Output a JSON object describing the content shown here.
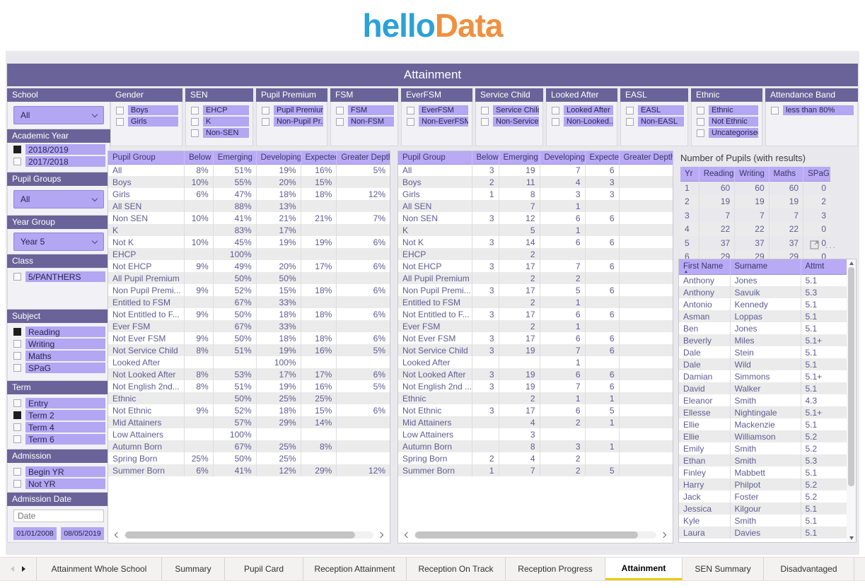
{
  "logo": {
    "part1": "hello",
    "part2": "Data"
  },
  "banner": {
    "title": "Attainment"
  },
  "top_filters": [
    {
      "title": "Gender",
      "options": [
        {
          "label": "Boys",
          "checked": false
        },
        {
          "label": "Girls",
          "checked": false
        }
      ]
    },
    {
      "title": "SEN",
      "options": [
        {
          "label": "EHCP",
          "checked": false
        },
        {
          "label": "K",
          "checked": false
        },
        {
          "label": "Non-SEN",
          "checked": false
        }
      ]
    },
    {
      "title": "Pupil Premium",
      "options": [
        {
          "label": "Pupil Premium",
          "checked": false
        },
        {
          "label": "Non-Pupil Pr...",
          "checked": false
        }
      ]
    },
    {
      "title": "FSM",
      "options": [
        {
          "label": "FSM",
          "checked": false
        },
        {
          "label": "Non-FSM",
          "checked": false
        }
      ]
    },
    {
      "title": "EverFSM",
      "options": [
        {
          "label": "EverFSM",
          "checked": false
        },
        {
          "label": "Non-EverFSM",
          "checked": false
        }
      ]
    },
    {
      "title": "Service Child",
      "options": [
        {
          "label": "Service Child",
          "checked": false
        },
        {
          "label": "Non-Service ...",
          "checked": false
        }
      ]
    },
    {
      "title": "Looked After",
      "options": [
        {
          "label": "Looked After",
          "checked": false
        },
        {
          "label": "Non-Looked...",
          "checked": false
        }
      ]
    },
    {
      "title": "EASL",
      "options": [
        {
          "label": "EASL",
          "checked": false
        },
        {
          "label": "Non-EASL",
          "checked": false
        }
      ]
    },
    {
      "title": "Ethnic",
      "options": [
        {
          "label": "Ethnic",
          "checked": false
        },
        {
          "label": "Not Ethnic",
          "checked": false
        },
        {
          "label": "Uncategorised",
          "checked": false
        }
      ]
    },
    {
      "title": "Attendance Band",
      "options": [
        {
          "label": "less than 80%",
          "checked": false
        }
      ]
    }
  ],
  "sidebar": {
    "school": {
      "title": "School",
      "value": "All"
    },
    "academic_year": {
      "title": "Academic Year",
      "options": [
        {
          "label": "2018/2019",
          "checked": true
        },
        {
          "label": "2017/2018",
          "checked": false
        }
      ]
    },
    "pupil_groups": {
      "title": "Pupil Groups",
      "value": "All"
    },
    "year_group": {
      "title": "Year Group",
      "value": "Year 5"
    },
    "class": {
      "title": "Class",
      "options": [
        {
          "label": "5/PANTHERS",
          "checked": false
        }
      ]
    },
    "subject": {
      "title": "Subject",
      "options": [
        {
          "label": "Reading",
          "checked": true
        },
        {
          "label": "Writing",
          "checked": false
        },
        {
          "label": "Maths",
          "checked": false
        },
        {
          "label": "SPaG",
          "checked": false
        }
      ]
    },
    "term": {
      "title": "Term",
      "options": [
        {
          "label": "Entry",
          "checked": false
        },
        {
          "label": "Term 2",
          "checked": true
        },
        {
          "label": "Term 4",
          "checked": false
        },
        {
          "label": "Term 6",
          "checked": false
        }
      ]
    },
    "admission": {
      "title": "Admission",
      "options": [
        {
          "label": "Begin YR",
          "checked": false
        },
        {
          "label": "Not YR",
          "checked": false
        }
      ]
    },
    "admission_date": {
      "title": "Admission Date",
      "input_placeholder": "Date",
      "start": "01/01/2008",
      "end": "08/05/2019"
    }
  },
  "pct_table": {
    "headers": [
      "Pupil Group",
      "Below",
      "Emerging",
      "Developing",
      "Expected",
      "Greater Depth"
    ],
    "rows": [
      [
        "All",
        "8%",
        "51%",
        "19%",
        "16%",
        "5%"
      ],
      [
        "Boys",
        "10%",
        "55%",
        "20%",
        "15%",
        ""
      ],
      [
        "Girls",
        "6%",
        "47%",
        "18%",
        "18%",
        "12%"
      ],
      [
        "All SEN",
        "",
        "88%",
        "13%",
        "",
        ""
      ],
      [
        "Non SEN",
        "10%",
        "41%",
        "21%",
        "21%",
        "7%"
      ],
      [
        "K",
        "",
        "83%",
        "17%",
        "",
        ""
      ],
      [
        "Not K",
        "10%",
        "45%",
        "19%",
        "19%",
        "6%"
      ],
      [
        "EHCP",
        "",
        "100%",
        "",
        "",
        ""
      ],
      [
        "Not EHCP",
        "9%",
        "49%",
        "20%",
        "17%",
        "6%"
      ],
      [
        "All Pupil Premium",
        "",
        "50%",
        "50%",
        "",
        ""
      ],
      [
        "Non Pupil Premi...",
        "9%",
        "52%",
        "15%",
        "18%",
        "6%"
      ],
      [
        "Entitled to FSM",
        "",
        "67%",
        "33%",
        "",
        ""
      ],
      [
        "Not Entitled to F...",
        "9%",
        "50%",
        "18%",
        "18%",
        "6%"
      ],
      [
        "Ever FSM",
        "",
        "67%",
        "33%",
        "",
        ""
      ],
      [
        "Not Ever FSM",
        "9%",
        "50%",
        "18%",
        "18%",
        "6%"
      ],
      [
        "Not Service Child",
        "8%",
        "51%",
        "19%",
        "16%",
        "5%"
      ],
      [
        "Looked After",
        "",
        "",
        "100%",
        "",
        ""
      ],
      [
        "Not Looked After",
        "8%",
        "53%",
        "17%",
        "17%",
        "6%"
      ],
      [
        "Not English 2nd...",
        "8%",
        "51%",
        "19%",
        "16%",
        "5%"
      ],
      [
        "Ethnic",
        "",
        "50%",
        "25%",
        "25%",
        ""
      ],
      [
        "Not Ethnic",
        "9%",
        "52%",
        "18%",
        "15%",
        "6%"
      ],
      [
        "Mid Attainers",
        "",
        "57%",
        "29%",
        "14%",
        ""
      ],
      [
        "Low Attainers",
        "",
        "100%",
        "",
        "",
        ""
      ],
      [
        "Autumn Born",
        "",
        "67%",
        "25%",
        "8%",
        ""
      ],
      [
        "Spring Born",
        "25%",
        "50%",
        "25%",
        "",
        ""
      ],
      [
        "Summer Born",
        "6%",
        "41%",
        "12%",
        "29%",
        "12%"
      ]
    ]
  },
  "count_table": {
    "headers": [
      "Pupil Group",
      "Below",
      "Emerging",
      "Developing",
      "Expected",
      "Greater Depth"
    ],
    "rows": [
      [
        "All",
        "3",
        "19",
        "7",
        "6",
        ""
      ],
      [
        "Boys",
        "2",
        "11",
        "4",
        "3",
        ""
      ],
      [
        "Girls",
        "1",
        "8",
        "3",
        "3",
        ""
      ],
      [
        "All SEN",
        "",
        "7",
        "1",
        "",
        ""
      ],
      [
        "Non SEN",
        "3",
        "12",
        "6",
        "6",
        ""
      ],
      [
        "K",
        "",
        "5",
        "1",
        "",
        ""
      ],
      [
        "Not K",
        "3",
        "14",
        "6",
        "6",
        ""
      ],
      [
        "EHCP",
        "",
        "2",
        "",
        "",
        ""
      ],
      [
        "Not EHCP",
        "3",
        "17",
        "7",
        "6",
        ""
      ],
      [
        "All Pupil Premium",
        "",
        "2",
        "2",
        "",
        ""
      ],
      [
        "Non Pupil Premi...",
        "3",
        "17",
        "5",
        "6",
        ""
      ],
      [
        "Entitled to FSM",
        "",
        "2",
        "1",
        "",
        ""
      ],
      [
        "Not Entitled to F...",
        "3",
        "17",
        "6",
        "6",
        ""
      ],
      [
        "Ever FSM",
        "",
        "2",
        "1",
        "",
        ""
      ],
      [
        "Not Ever FSM",
        "3",
        "17",
        "6",
        "6",
        ""
      ],
      [
        "Not Service Child",
        "3",
        "19",
        "7",
        "6",
        ""
      ],
      [
        "Looked After",
        "",
        "",
        "1",
        "",
        ""
      ],
      [
        "Not Looked After",
        "3",
        "19",
        "6",
        "6",
        ""
      ],
      [
        "Not English 2nd ...",
        "3",
        "19",
        "7",
        "6",
        ""
      ],
      [
        "Ethnic",
        "",
        "2",
        "1",
        "1",
        ""
      ],
      [
        "Not Ethnic",
        "3",
        "17",
        "6",
        "5",
        ""
      ],
      [
        "Mid Attainers",
        "",
        "4",
        "2",
        "1",
        ""
      ],
      [
        "Low Attainers",
        "",
        "3",
        "",
        "",
        ""
      ],
      [
        "Autumn Born",
        "",
        "8",
        "3",
        "1",
        ""
      ],
      [
        "Spring Born",
        "2",
        "4",
        "2",
        "",
        ""
      ],
      [
        "Summer Born",
        "1",
        "7",
        "2",
        "5",
        ""
      ]
    ]
  },
  "pupils_table": {
    "title": "Number of Pupils (with results)",
    "headers": [
      "Yr",
      "Reading",
      "Writing",
      "Maths",
      "SPaG"
    ],
    "rows": [
      [
        "1",
        "60",
        "60",
        "60",
        "0"
      ],
      [
        "2",
        "19",
        "19",
        "19",
        "2"
      ],
      [
        "3",
        "7",
        "7",
        "7",
        "3"
      ],
      [
        "4",
        "22",
        "22",
        "22",
        "0"
      ],
      [
        "5",
        "37",
        "37",
        "37",
        "0"
      ],
      [
        "6",
        "29",
        "29",
        "29",
        "0"
      ]
    ]
  },
  "names_table": {
    "headers": [
      "First Name",
      "Surname",
      "Attmt"
    ],
    "rows": [
      [
        "Anthony",
        "Jones",
        "5.1"
      ],
      [
        "Anthony",
        "Savuik",
        "5.3"
      ],
      [
        "Antonio",
        "Kennedy",
        "5.1"
      ],
      [
        "Asman",
        "Loppas",
        "5.1"
      ],
      [
        "Ben",
        "Jones",
        "5.1"
      ],
      [
        "Beverly",
        "Miles",
        "5.1+"
      ],
      [
        "Dale",
        "Stein",
        "5.1"
      ],
      [
        "Dale",
        "Wild",
        "5.1"
      ],
      [
        "Damian",
        "Simmons",
        "5.1+"
      ],
      [
        "David",
        "Walker",
        "5.1"
      ],
      [
        "Eleanor",
        "Smith",
        "4.3"
      ],
      [
        "Ellesse",
        "Nightingale",
        "5.1+"
      ],
      [
        "Ellie",
        "Mackenzie",
        "5.1"
      ],
      [
        "Ellie",
        "Williamson",
        "5.2"
      ],
      [
        "Emily",
        "Smith",
        "5.2"
      ],
      [
        "Ethan",
        "Smith",
        "5.3"
      ],
      [
        "Finley",
        "Mabbett",
        "5.1"
      ],
      [
        "Harry",
        "Philpot",
        "5.2"
      ],
      [
        "Jack",
        "Foster",
        "5.2"
      ],
      [
        "Jessica",
        "Kilgour",
        "5.1"
      ],
      [
        "Kyle",
        "Smith",
        "5.1"
      ],
      [
        "Laura",
        "Davies",
        "5.1"
      ]
    ]
  },
  "tabs": {
    "items": [
      "Attainment Whole School",
      "Summary",
      "Pupil Card",
      "Reception Attainment",
      "Reception On Track",
      "Reception Progress",
      "Attainment",
      "SEN Summary",
      "Disadvantaged"
    ],
    "active": "Attainment"
  },
  "colors": {
    "accent_purple": "#6A6399",
    "lavender": "#B3A6F2",
    "table_header_lavender": "#B8AAF5",
    "active_tab_underline": "#F2C811",
    "logo_blue": "#2BA1D8",
    "logo_orange": "#F0903F"
  }
}
